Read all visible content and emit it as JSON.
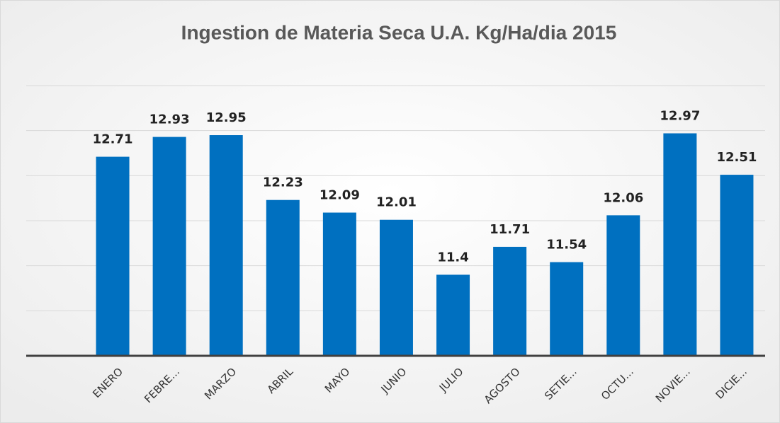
{
  "chart_data": {
    "type": "bar",
    "title": "Ingestion de Materia Seca U.A. Kg/Ha/dia 2015",
    "categories": [
      "ENERO",
      "FEBRE...",
      "MARZO",
      "ABRIL",
      "MAYO",
      "JUNIO",
      "JULIO",
      "AGOSTO",
      "SETIE...",
      "OCTU...",
      "NOVIE...",
      "DICIE..."
    ],
    "values": [
      12.71,
      12.93,
      12.95,
      12.23,
      12.09,
      12.01,
      11.4,
      11.71,
      11.54,
      12.06,
      12.97,
      12.51
    ],
    "color": "#0070c0",
    "ylim": [
      10.5,
      13.5
    ],
    "yticks": [
      10.5,
      11,
      11.5,
      12,
      12.5,
      13,
      13.5
    ],
    "grid": true
  }
}
